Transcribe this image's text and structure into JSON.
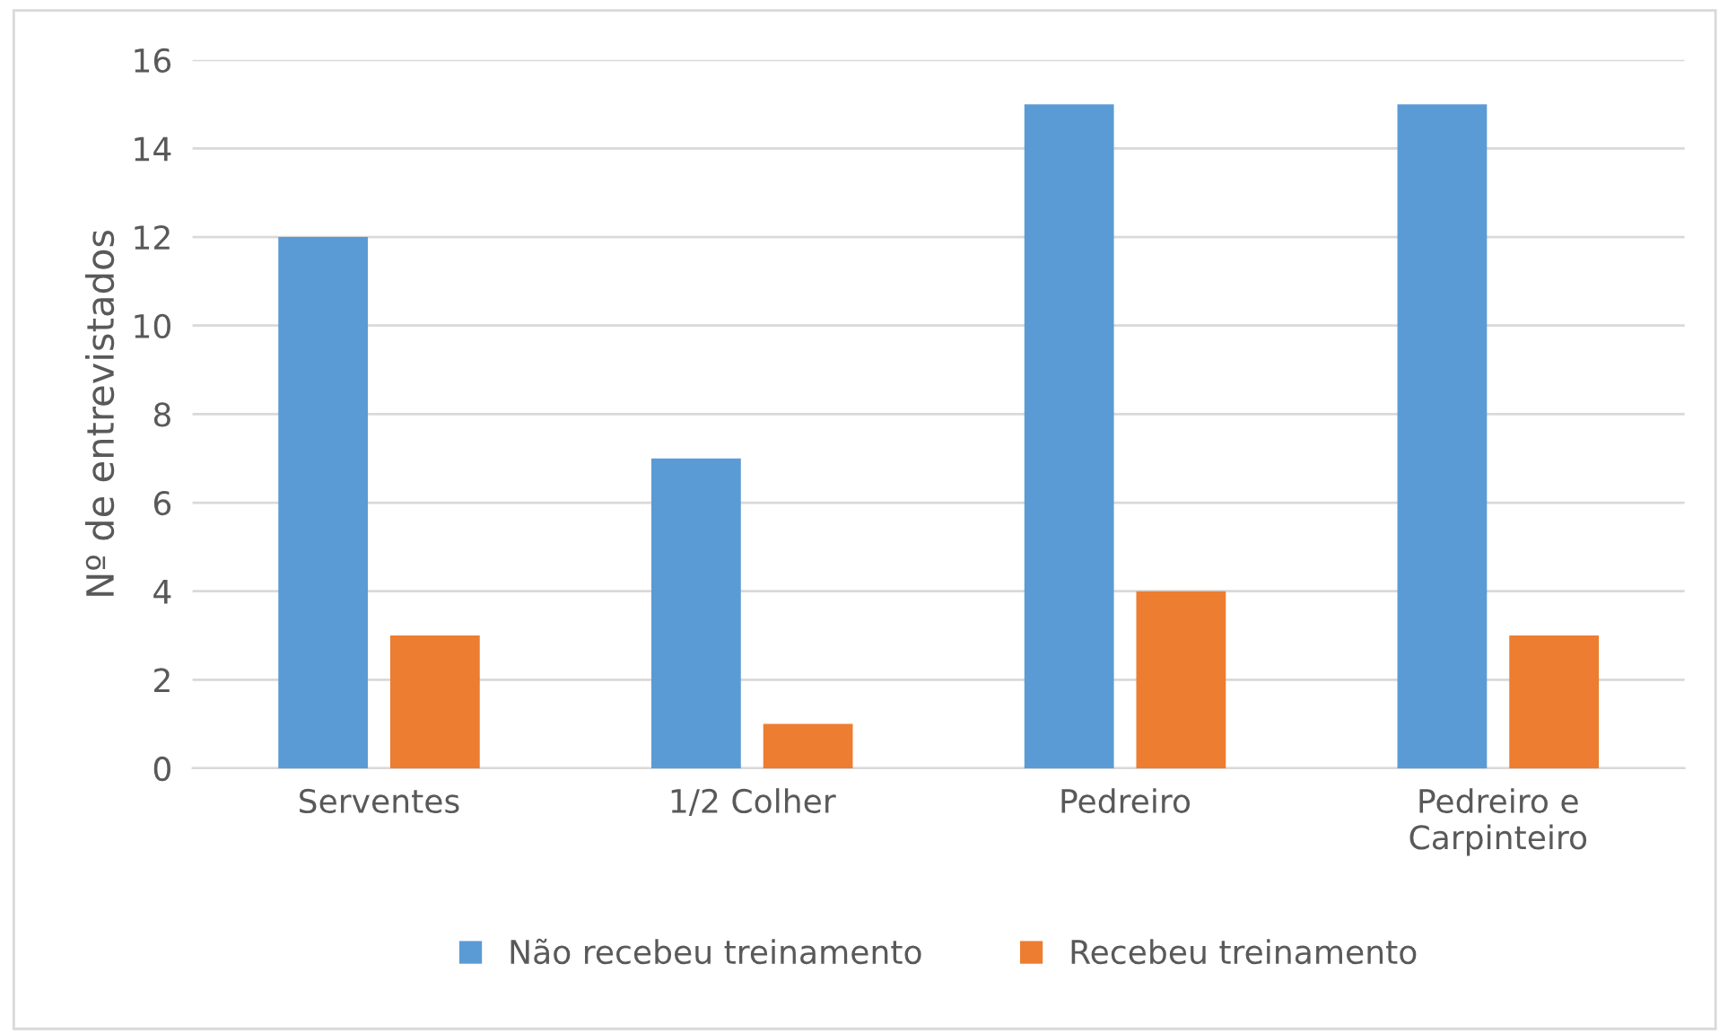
{
  "chart_data": {
    "type": "bar",
    "ylabel": "Nº de entrevistados",
    "categories": [
      "Serventes",
      "1/2 Colher",
      "Pedreiro",
      "Pedreiro e\nCarpinteiro"
    ],
    "series": [
      {
        "name": "Não recebeu treinamento",
        "color": "#5b9bd5",
        "values": [
          12,
          7,
          15,
          15
        ]
      },
      {
        "name": "Recebeu treinamento",
        "color": "#ed7d31",
        "values": [
          3,
          1,
          4,
          3
        ]
      }
    ],
    "ylim": [
      0,
      16
    ],
    "yticks": [
      0,
      2,
      4,
      6,
      8,
      10,
      12,
      14,
      16
    ],
    "grid": "y",
    "legend": "bottom"
  }
}
